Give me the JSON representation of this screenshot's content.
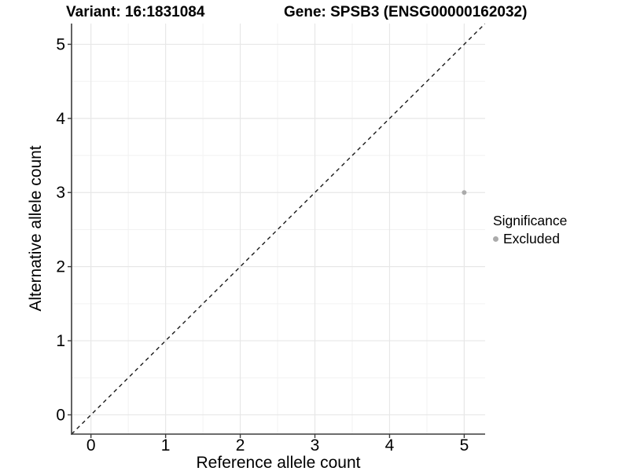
{
  "chart_data": {
    "type": "scatter",
    "title_left": "Variant: 16:1831084",
    "title_right": "Gene: SPSB3 (ENSG00000162032)",
    "xlabel": "Reference allele count",
    "ylabel": "Alternative allele count",
    "x_ticks": [
      0,
      1,
      2,
      3,
      4,
      5
    ],
    "y_ticks": [
      0,
      1,
      2,
      3,
      4,
      5
    ],
    "x_minor_ticks": [
      0.5,
      1.5,
      2.5,
      3.5,
      4.5
    ],
    "y_minor_ticks": [
      0.5,
      1.5,
      2.5,
      3.5,
      4.5
    ],
    "xlim": [
      -0.26,
      5.28
    ],
    "ylim": [
      -0.26,
      5.28
    ],
    "grid": true,
    "points": [
      {
        "x": 5,
        "y": 3,
        "significance": "Excluded"
      }
    ],
    "reference_line": {
      "slope": 1,
      "intercept": 0,
      "style": "dashed"
    },
    "legend": {
      "title": "Significance",
      "position": "right",
      "entries": [
        {
          "label": "Excluded",
          "color": "#ababab"
        }
      ]
    },
    "colors": {
      "point": "#ababab",
      "grid_major": "#e7e7e7",
      "grid_minor": "#f2f2f2",
      "axis": "#3c3c3c",
      "reference_line": "#1a1a1a",
      "text": "#000000",
      "background": "#ffffff"
    }
  }
}
